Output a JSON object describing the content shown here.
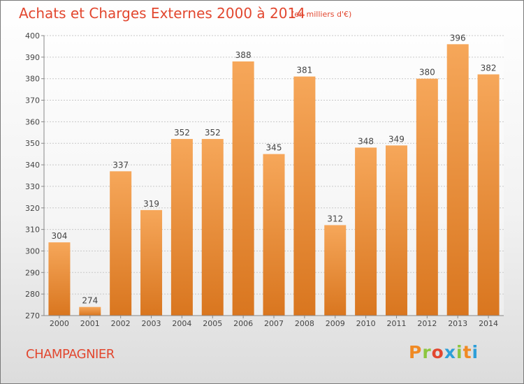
{
  "header": {
    "title": "Achats et Charges Externes 2000 à 2014",
    "subtitle": "(en milliers d'€)"
  },
  "footer": {
    "commune": "CHAMPAGNIER",
    "logo_text": "Proxiti"
  },
  "colors": {
    "title": "#e2472f",
    "bar_top": "#f6a75a",
    "bar_bottom": "#d9761f",
    "logo_letters": [
      "#f08a24",
      "#8cc63f",
      "#e2472f",
      "#2e9fd8",
      "#8cc63f",
      "#f08a24",
      "#2e9fd8"
    ]
  },
  "chart_data": {
    "type": "bar",
    "title": "Achats et Charges Externes 2000 à 2014",
    "subtitle": "(en milliers d'€)",
    "categories": [
      "2000",
      "2001",
      "2002",
      "2003",
      "2004",
      "2005",
      "2006",
      "2007",
      "2008",
      "2009",
      "2010",
      "2011",
      "2012",
      "2013",
      "2014"
    ],
    "values": [
      304,
      274,
      337,
      319,
      352,
      352,
      388,
      345,
      381,
      312,
      348,
      349,
      380,
      396,
      382
    ],
    "ylim": [
      270,
      400
    ],
    "yticks": [
      270,
      280,
      290,
      300,
      310,
      320,
      330,
      340,
      350,
      360,
      370,
      380,
      390,
      400
    ],
    "grid": true,
    "data_labels": true
  }
}
